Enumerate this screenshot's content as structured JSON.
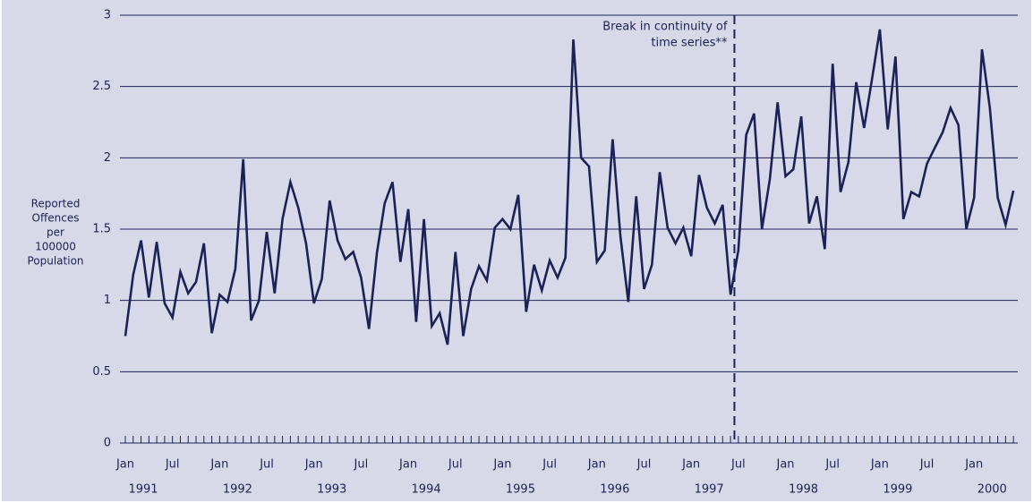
{
  "chart_data": {
    "type": "line",
    "y_label": [
      "Reported",
      "Offences",
      "per",
      "100000",
      "Population"
    ],
    "annotation": [
      "Break in continuity of",
      "time series**"
    ],
    "categories": [
      "Jan",
      null,
      null,
      null,
      null,
      null,
      "Jul",
      null,
      null,
      null,
      null,
      null,
      "Jan",
      null,
      null,
      null,
      null,
      null,
      "Jul",
      null,
      null,
      null,
      null,
      null,
      "Jan",
      null,
      null,
      null,
      null,
      null,
      "Jul",
      null,
      null,
      null,
      null,
      null,
      "Jan",
      null,
      null,
      null,
      null,
      null,
      "Jul",
      null,
      null,
      null,
      null,
      null,
      "Jan",
      null,
      null,
      null,
      null,
      null,
      "Jul",
      null,
      null,
      null,
      null,
      null,
      "Jan",
      null,
      null,
      null,
      null,
      null,
      "Jul",
      null,
      null,
      null,
      null,
      null,
      "Jan",
      null,
      null,
      null,
      null,
      null,
      "Jul",
      null,
      null,
      null,
      null,
      null,
      "Jan",
      null,
      null,
      null,
      null,
      null,
      "Jul",
      null,
      null,
      null,
      null,
      null,
      "Jan",
      null,
      null,
      null,
      null,
      null,
      "Jul",
      null,
      null,
      null,
      null,
      null,
      "Jan",
      null,
      null,
      null,
      null,
      null
    ],
    "years": [
      "1991",
      "1992",
      "1993",
      "1994",
      "1995",
      "1996",
      "1997",
      "1998",
      "1999",
      "2000"
    ],
    "series": [
      {
        "name": "Reported Offences",
        "color": "#1c2257",
        "values": [
          0.75,
          1.18,
          1.42,
          1.02,
          1.41,
          0.98,
          0.88,
          1.2,
          1.05,
          1.13,
          1.4,
          0.77,
          1.04,
          0.99,
          1.22,
          1.99,
          0.86,
          1.0,
          1.48,
          1.05,
          1.57,
          1.83,
          1.65,
          1.4,
          0.98,
          1.15,
          1.7,
          1.42,
          1.29,
          1.34,
          1.16,
          0.8,
          1.33,
          1.68,
          1.83,
          1.27,
          1.64,
          0.85,
          1.57,
          0.82,
          0.91,
          0.69,
          1.34,
          0.75,
          1.08,
          1.24,
          1.14,
          1.51,
          1.57,
          1.5,
          1.74,
          0.92,
          1.25,
          1.07,
          1.28,
          1.16,
          1.3,
          2.83,
          2.0,
          1.94,
          1.27,
          1.35,
          2.13,
          1.45,
          0.99,
          1.73,
          1.08,
          1.25,
          1.9,
          1.51,
          1.4,
          1.51,
          1.31,
          1.88,
          1.65,
          1.54,
          1.67,
          1.04,
          1.35,
          2.16,
          2.31,
          1.5,
          1.85,
          2.39,
          1.87,
          1.92,
          2.29,
          1.54,
          1.73,
          1.36,
          2.66,
          1.76,
          1.97,
          2.53,
          2.21,
          2.55,
          2.9,
          2.2,
          2.71,
          1.57,
          1.76,
          1.73,
          1.96,
          2.07,
          2.18,
          2.35,
          2.23,
          1.5,
          1.72,
          2.76,
          2.35,
          1.72,
          1.53,
          1.77
        ]
      }
    ],
    "ylim": [
      0,
      3
    ],
    "yticks": [
      0,
      0.5,
      1,
      1.5,
      2,
      2.5,
      3
    ],
    "grid": true
  }
}
